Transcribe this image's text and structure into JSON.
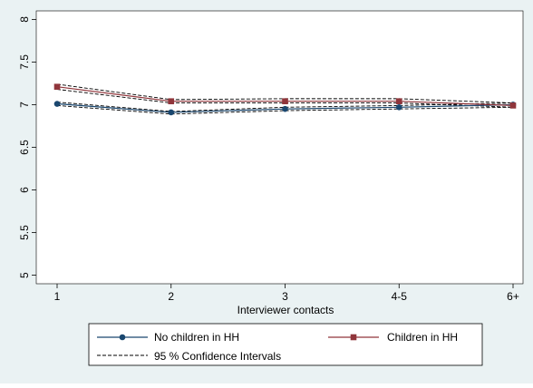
{
  "chart_data": {
    "type": "line",
    "title": "",
    "xlabel": "Interviewer contacts",
    "ylabel": "",
    "categories": [
      "1",
      "2",
      "3",
      "4-5",
      "6+"
    ],
    "ylim": [
      4.9,
      8.1
    ],
    "yticks": [
      5,
      5.5,
      6,
      6.5,
      7,
      7.5,
      8
    ],
    "ytick_labels": [
      "5",
      "5.5",
      "6",
      "6.5",
      "7",
      "7.5",
      "8"
    ],
    "grid": false,
    "legend_position": "bottom",
    "series": [
      {
        "name": "No children in HH",
        "color": "#1a476f",
        "marker": "circle",
        "values": [
          7.01,
          6.91,
          6.95,
          6.97,
          7.0
        ],
        "ci_upper": [
          7.03,
          6.92,
          6.97,
          6.99,
          7.02
        ],
        "ci_lower": [
          6.99,
          6.89,
          6.93,
          6.95,
          6.97
        ]
      },
      {
        "name": "Children in HH",
        "color": "#90353b",
        "marker": "square",
        "values": [
          7.21,
          7.04,
          7.04,
          7.04,
          6.99
        ],
        "ci_upper": [
          7.24,
          7.06,
          7.07,
          7.07,
          7.02
        ],
        "ci_lower": [
          7.18,
          7.02,
          7.02,
          7.02,
          6.97
        ]
      }
    ],
    "legend": {
      "ci_label": "95 % Confidence Intervals"
    },
    "colors": {
      "outer_background": "#eaf2f3",
      "plot_background": "#ffffff",
      "ci_line": "#000000"
    }
  }
}
